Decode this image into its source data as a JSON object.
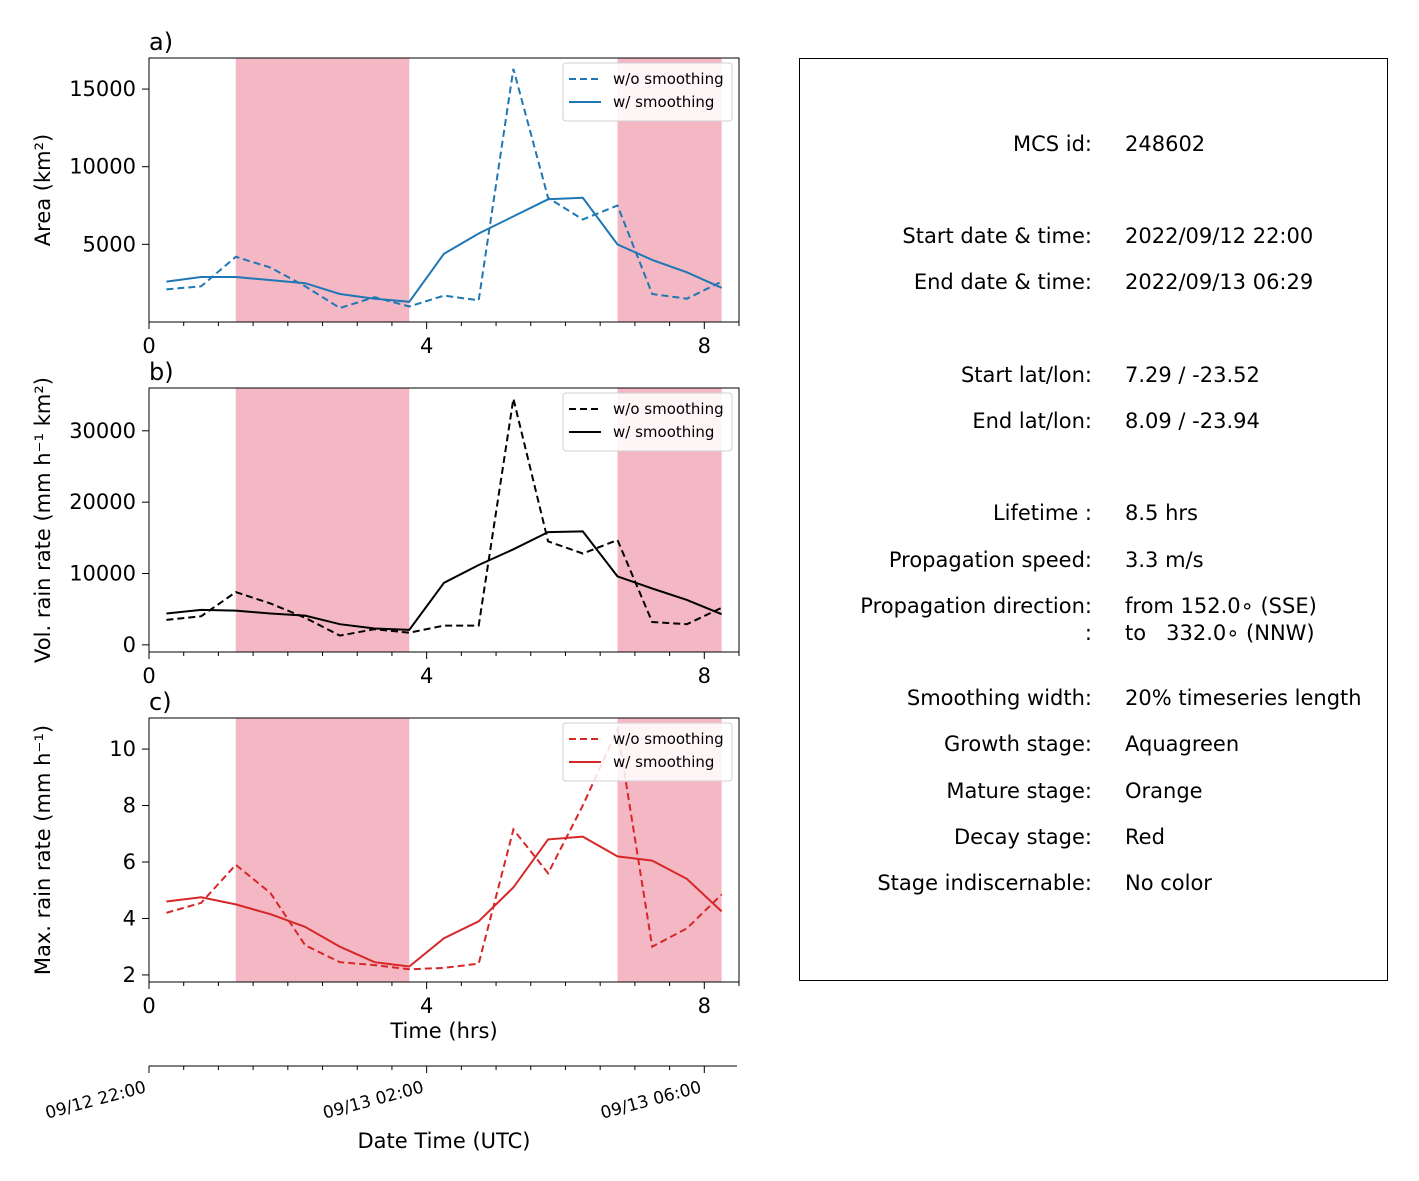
{
  "chart_data": [
    {
      "type": "line",
      "panel_label": "a)",
      "ylabel": "Area  (km²)",
      "xlim": [
        0,
        8.5
      ],
      "ylim": [
        0,
        17000
      ],
      "xticks": [
        0,
        4,
        8
      ],
      "yticks": [
        5000,
        10000,
        15000
      ],
      "color": "#1f77b4",
      "legend_position": "top-right",
      "stage_shading": [
        [
          1.25,
          3.75
        ],
        [
          6.75,
          8.25
        ]
      ],
      "shading_color": "#f4b8c4",
      "series": [
        {
          "name": "w/o smoothing",
          "style": "dashed",
          "x": [
            0.25,
            0.75,
            1.25,
            1.75,
            2.25,
            2.75,
            3.25,
            3.75,
            4.25,
            4.75,
            5.25,
            5.75,
            6.25,
            6.75,
            7.25,
            7.75,
            8.25
          ],
          "y": [
            2100,
            2300,
            4200,
            3500,
            2300,
            900,
            1600,
            1000,
            1700,
            1400,
            16300,
            8000,
            6600,
            7500,
            1800,
            1500,
            2600
          ]
        },
        {
          "name": "w/ smoothing",
          "style": "solid",
          "x": [
            0.25,
            0.75,
            1.25,
            1.75,
            2.25,
            2.75,
            3.25,
            3.75,
            4.25,
            4.75,
            5.25,
            5.75,
            6.25,
            6.75,
            7.25,
            7.75,
            8.25
          ],
          "y": [
            2600,
            2900,
            2900,
            2700,
            2500,
            1800,
            1500,
            1300,
            4400,
            5700,
            6800,
            7900,
            8000,
            5000,
            4000,
            3200,
            2200
          ]
        }
      ]
    },
    {
      "type": "line",
      "panel_label": "b)",
      "ylabel": "Vol. rain rate (mm h⁻¹ km²)",
      "xlim": [
        0,
        8.5
      ],
      "ylim": [
        -1000,
        36000
      ],
      "xticks": [
        0,
        4,
        8
      ],
      "yticks": [
        0,
        10000,
        20000,
        30000
      ],
      "color": "#000000",
      "legend_position": "top-right",
      "stage_shading": [
        [
          1.25,
          3.75
        ],
        [
          6.75,
          8.25
        ]
      ],
      "shading_color": "#f4b8c4",
      "series": [
        {
          "name": "w/o smoothing",
          "style": "dashed",
          "x": [
            0.25,
            0.75,
            1.25,
            1.75,
            2.25,
            2.75,
            3.25,
            3.75,
            4.25,
            4.75,
            5.25,
            5.75,
            6.25,
            6.75,
            7.25,
            7.75,
            8.25
          ],
          "y": [
            3500,
            4000,
            7400,
            5800,
            3800,
            1300,
            2200,
            1700,
            2700,
            2700,
            34500,
            14500,
            12800,
            14700,
            3200,
            2900,
            5200
          ]
        },
        {
          "name": "w/ smoothing",
          "style": "solid",
          "x": [
            0.25,
            0.75,
            1.25,
            1.75,
            2.25,
            2.75,
            3.25,
            3.75,
            4.25,
            4.75,
            5.25,
            5.75,
            6.25,
            6.75,
            7.25,
            7.75,
            8.25
          ],
          "y": [
            4400,
            4900,
            4800,
            4400,
            4100,
            2900,
            2300,
            2100,
            8700,
            11200,
            13400,
            15800,
            15900,
            9600,
            7900,
            6300,
            4300
          ]
        }
      ]
    },
    {
      "type": "line",
      "panel_label": "c)",
      "ylabel": "Max. rain rate  (mm h⁻¹)",
      "xlabel": "Time (hrs)",
      "xlim": [
        0,
        8.5
      ],
      "ylim": [
        1.75,
        11.1
      ],
      "xticks": [
        0,
        4,
        8
      ],
      "yticks": [
        2,
        4,
        6,
        8,
        10
      ],
      "color": "#d62728",
      "legend_position": "top-right",
      "stage_shading": [
        [
          1.25,
          3.75
        ],
        [
          6.75,
          8.25
        ]
      ],
      "shading_color": "#f4b8c4",
      "series": [
        {
          "name": "w/o smoothing",
          "style": "dashed",
          "x": [
            0.25,
            0.75,
            1.25,
            1.75,
            2.25,
            2.75,
            3.25,
            3.75,
            4.25,
            4.75,
            5.25,
            5.75,
            6.25,
            6.75,
            7.25,
            7.75,
            8.25
          ],
          "y": [
            4.2,
            4.55,
            5.9,
            4.9,
            3.05,
            2.45,
            2.35,
            2.2,
            2.25,
            2.4,
            7.15,
            5.6,
            8.0,
            10.7,
            3.0,
            3.65,
            4.85
          ]
        },
        {
          "name": "w/ smoothing",
          "style": "solid",
          "x": [
            0.25,
            0.75,
            1.25,
            1.75,
            2.25,
            2.75,
            3.25,
            3.75,
            4.25,
            4.75,
            5.25,
            5.75,
            6.25,
            6.75,
            7.25,
            7.75,
            8.25
          ],
          "y": [
            4.6,
            4.75,
            4.5,
            4.15,
            3.7,
            3.0,
            2.45,
            2.3,
            3.3,
            3.9,
            5.1,
            6.8,
            6.9,
            6.2,
            6.05,
            5.4,
            4.25
          ]
        }
      ]
    }
  ],
  "datetime_axis": {
    "xlabel": "Date Time (UTC)",
    "ticks": [
      {
        "hours": 0,
        "label": "09/12 22:00"
      },
      {
        "hours": 4,
        "label": "09/13 02:00"
      },
      {
        "hours": 8,
        "label": "09/13 06:00"
      }
    ]
  },
  "info_panel": {
    "rows": [
      {
        "label": "MCS id:",
        "value": "248602"
      },
      {
        "label": "Start date & time:",
        "value": "2022/09/12 22:00"
      },
      {
        "label": "End date & time:",
        "value": "2022/09/13 06:29"
      },
      {
        "label": "Start lat/lon:",
        "value": "7.29 / -23.52"
      },
      {
        "label": "End lat/lon:",
        "value": "8.09 / -23.94"
      },
      {
        "label": "Lifetime :",
        "value": "8.5 hrs"
      },
      {
        "label": "Propagation speed:",
        "value": "3.3 m/s"
      },
      {
        "label": "Propagation direction:",
        "value": "from 152.0∘ (SSE)"
      },
      {
        "label": ":",
        "value": "to   332.0∘ (NNW)"
      },
      {
        "label": "Smoothing width:",
        "value": "20% timeseries length"
      },
      {
        "label": "Growth stage:",
        "value": "Aquagreen"
      },
      {
        "label": "Mature stage:",
        "value": "Orange"
      },
      {
        "label": "Decay stage:",
        "value": "Red"
      },
      {
        "label": "Stage indiscernable:",
        "value": "No color"
      }
    ]
  }
}
